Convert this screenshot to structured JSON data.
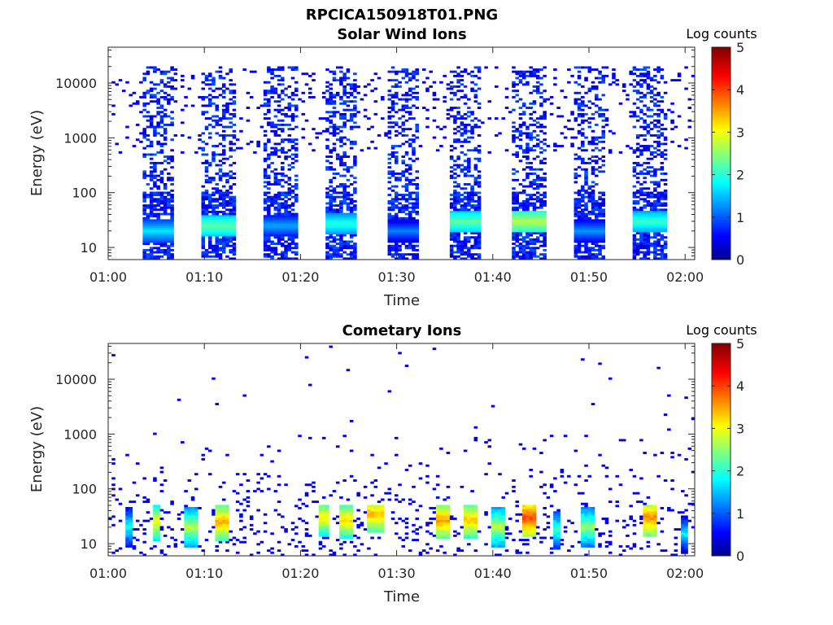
{
  "figure_title": "RPCICA150918T01.PNG",
  "chart_data": [
    {
      "type": "heatmap",
      "title": "Solar Wind Ions",
      "xlabel": "Time",
      "ylabel": "Energy (eV)",
      "y_scale": "log",
      "ylim": [
        6,
        45000
      ],
      "x_ticks": [
        "01:00",
        "01:10",
        "01:20",
        "01:30",
        "01:40",
        "01:50",
        "02:00"
      ],
      "x_tick_minutes": [
        0,
        10,
        20,
        30,
        40,
        50,
        60
      ],
      "xlim_minutes": [
        0,
        61
      ],
      "y_ticks": [
        "10",
        "100",
        "1000",
        "10000"
      ],
      "y_tick_values": [
        10,
        100,
        1000,
        10000
      ],
      "colorbar": {
        "label": "Log counts",
        "ticks": [
          "0",
          "1",
          "2",
          "3",
          "4",
          "5"
        ],
        "range": [
          0,
          5
        ]
      },
      "sweeps": [
        {
          "start_min": 3.5,
          "end_min": 6.8,
          "peak_energy_ev": 20,
          "peak_log_counts": 1.7
        },
        {
          "start_min": 9.7,
          "end_min": 13.2,
          "peak_energy_ev": 25,
          "peak_log_counts": 2.3
        },
        {
          "start_min": 16.0,
          "end_min": 19.6,
          "peak_energy_ev": 25,
          "peak_log_counts": 1.4
        },
        {
          "start_min": 22.6,
          "end_min": 25.9,
          "peak_energy_ev": 27,
          "peak_log_counts": 2.0
        },
        {
          "start_min": 29.2,
          "end_min": 32.4,
          "peak_energy_ev": 20,
          "peak_log_counts": 1.2
        },
        {
          "start_min": 35.6,
          "end_min": 38.8,
          "peak_energy_ev": 30,
          "peak_log_counts": 2.3
        },
        {
          "start_min": 42.0,
          "end_min": 45.4,
          "peak_energy_ev": 30,
          "peak_log_counts": 2.7
        },
        {
          "start_min": 48.4,
          "end_min": 51.6,
          "peak_energy_ev": 20,
          "peak_log_counts": 1.3
        },
        {
          "start_min": 54.6,
          "end_min": 58.0,
          "peak_energy_ev": 30,
          "peak_log_counts": 2.1
        }
      ]
    },
    {
      "type": "heatmap",
      "title": "Cometary Ions",
      "xlabel": "Time",
      "ylabel": "Energy (eV)",
      "y_scale": "log",
      "ylim": [
        6,
        45000
      ],
      "x_ticks": [
        "01:00",
        "01:10",
        "01:20",
        "01:30",
        "01:40",
        "01:50",
        "02:00"
      ],
      "x_tick_minutes": [
        0,
        10,
        20,
        30,
        40,
        50,
        60
      ],
      "xlim_minutes": [
        0,
        61
      ],
      "y_ticks": [
        "10",
        "100",
        "1000",
        "10000"
      ],
      "y_tick_values": [
        10,
        100,
        1000,
        10000
      ],
      "colorbar": {
        "label": "Log counts",
        "ticks": [
          "0",
          "1",
          "2",
          "3",
          "4",
          "5"
        ],
        "range": [
          0,
          5
        ]
      },
      "bursts": [
        {
          "start_min": 1.8,
          "end_min": 2.5,
          "peak_energy_ev": 20,
          "peak_log_counts": 1.8
        },
        {
          "start_min": 4.8,
          "end_min": 5.5,
          "peak_energy_ev": 25,
          "peak_log_counts": 2.9
        },
        {
          "start_min": 7.8,
          "end_min": 9.2,
          "peak_energy_ev": 20,
          "peak_log_counts": 2.6
        },
        {
          "start_min": 11.0,
          "end_min": 12.4,
          "peak_energy_ev": 25,
          "peak_log_counts": 3.3
        },
        {
          "start_min": 21.8,
          "end_min": 23.0,
          "peak_energy_ev": 30,
          "peak_log_counts": 3.0
        },
        {
          "start_min": 24.0,
          "end_min": 25.6,
          "peak_energy_ev": 27,
          "peak_log_counts": 3.1
        },
        {
          "start_min": 27.0,
          "end_min": 28.6,
          "peak_energy_ev": 35,
          "peak_log_counts": 3.3
        },
        {
          "start_min": 34.0,
          "end_min": 35.4,
          "peak_energy_ev": 27,
          "peak_log_counts": 3.4
        },
        {
          "start_min": 36.8,
          "end_min": 38.4,
          "peak_energy_ev": 27,
          "peak_log_counts": 3.2
        },
        {
          "start_min": 40.0,
          "end_min": 41.3,
          "peak_energy_ev": 20,
          "peak_log_counts": 2.6
        },
        {
          "start_min": 43.0,
          "end_min": 44.6,
          "peak_energy_ev": 30,
          "peak_log_counts": 3.8
        },
        {
          "start_min": 46.2,
          "end_min": 46.9,
          "peak_energy_ev": 18,
          "peak_log_counts": 2.0
        },
        {
          "start_min": 49.2,
          "end_min": 50.6,
          "peak_energy_ev": 20,
          "peak_log_counts": 2.4
        },
        {
          "start_min": 55.6,
          "end_min": 57.2,
          "peak_energy_ev": 30,
          "peak_log_counts": 3.5
        },
        {
          "start_min": 59.6,
          "end_min": 60.3,
          "peak_energy_ev": 15,
          "peak_log_counts": 1.6
        }
      ]
    }
  ]
}
